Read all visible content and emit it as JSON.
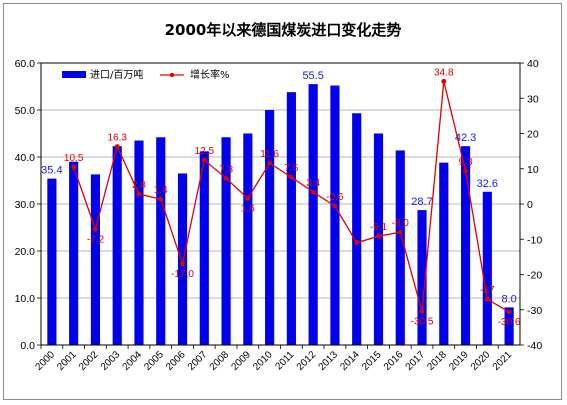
{
  "chart_data": {
    "type": "bar",
    "title": "2000年以来德国煤炭进口变化走势",
    "categories": [
      "2000",
      "2001",
      "2002",
      "2003",
      "2004",
      "2005",
      "2006",
      "2007",
      "2008",
      "2009",
      "2010",
      "2011",
      "2012",
      "2013",
      "2014",
      "2015",
      "2016",
      "2017",
      "2018",
      "2019",
      "2020",
      "2021"
    ],
    "series": [
      {
        "name": "进口/百万吨",
        "axis": "left",
        "kind": "bar",
        "color": "#0000ee",
        "values": [
          35.4,
          39.0,
          36.3,
          42.3,
          43.5,
          44.2,
          36.5,
          41.2,
          44.2,
          45.0,
          50.0,
          53.8,
          55.5,
          55.2,
          49.3,
          45.0,
          41.4,
          28.7,
          38.8,
          42.3,
          32.6,
          8.0
        ],
        "data_labels": {
          "0": "35.4",
          "12": "55.5",
          "17": "28.7",
          "19": "42.3",
          "20": "32.6",
          "21": "8.0"
        }
      },
      {
        "name": "增长率%",
        "axis": "right",
        "kind": "line",
        "color": "#e00000",
        "values": [
          null,
          10.5,
          -7.2,
          16.3,
          2.8,
          1.4,
          -17.0,
          12.5,
          7.3,
          1.6,
          11.6,
          7.6,
          3.4,
          -0.6,
          -11.0,
          -9.1,
          -8.0,
          -30.5,
          34.8,
          9.3,
          -27.0,
          -30.6
        ],
        "data_labels": [
          "",
          "10.5",
          "-7.2",
          "16.3",
          "2.8",
          "1.4",
          "-17.0",
          "12.5",
          "7.3",
          "1.6",
          "11.6",
          "7.6",
          "3.4",
          "-0.6",
          "",
          "-9.1",
          "-8.0",
          "-30.5",
          "34.8",
          "9.3",
          "-27",
          "-30.6"
        ]
      }
    ],
    "yaxis_left": {
      "min": 0,
      "max": 60,
      "step": 10,
      "tick_labels": [
        "0.0",
        "10.0",
        "20.0",
        "30.0",
        "40.0",
        "50.0",
        "60.0"
      ]
    },
    "yaxis_right": {
      "min": -40,
      "max": 40,
      "step": 10,
      "tick_labels": [
        "-40",
        "-30",
        "-20",
        "-10",
        "0",
        "10",
        "20",
        "30",
        "40"
      ]
    },
    "grid": true,
    "legend": {
      "placement": "top",
      "entries": [
        "进口/百万吨",
        "增长率%"
      ]
    }
  }
}
